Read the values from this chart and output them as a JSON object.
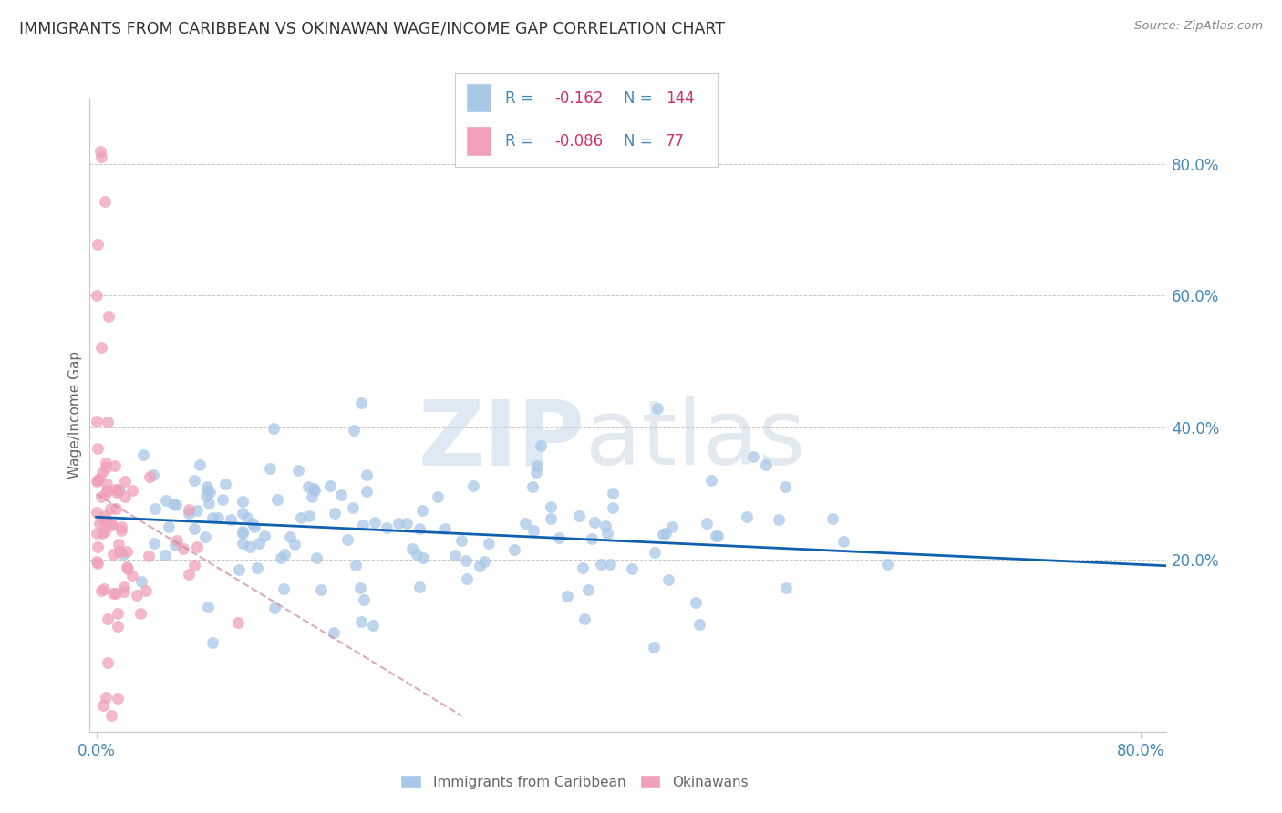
{
  "title": "IMMIGRANTS FROM CARIBBEAN VS OKINAWAN WAGE/INCOME GAP CORRELATION CHART",
  "source": "Source: ZipAtlas.com",
  "ylabel": "Wage/Income Gap",
  "xlim": [
    -0.005,
    0.82
  ],
  "ylim": [
    -0.06,
    0.9
  ],
  "xtick_positions": [
    0.0,
    0.8
  ],
  "xticklabels": [
    "0.0%",
    "80.0%"
  ],
  "ytick_positions": [
    0.2,
    0.4,
    0.6,
    0.8
  ],
  "yticklabels": [
    "20.0%",
    "40.0%",
    "60.0%",
    "80.0%"
  ],
  "caribbean_color": "#a8c8e8",
  "okinawan_color": "#f0a0b8",
  "caribbean_line_color": "#1060b0",
  "okinawan_line_color": "#cc8899",
  "legend_caribbean_color": "#a8c8e8",
  "legend_okinawan_color": "#f0a0b8",
  "R_caribbean": -0.162,
  "N_caribbean": 144,
  "R_okinawan": -0.086,
  "N_okinawan": 77,
  "watermark_zip": "ZIP",
  "watermark_atlas": "atlas",
  "background": "#ffffff",
  "grid_color": "#c8c8c8",
  "title_color": "#333333",
  "axis_label_color": "#666666",
  "tick_label_color": "#4488bb",
  "legend_text_color": "#4488bb",
  "legend_r_color": "#cc3366",
  "legend_n_color": "#cc3366"
}
